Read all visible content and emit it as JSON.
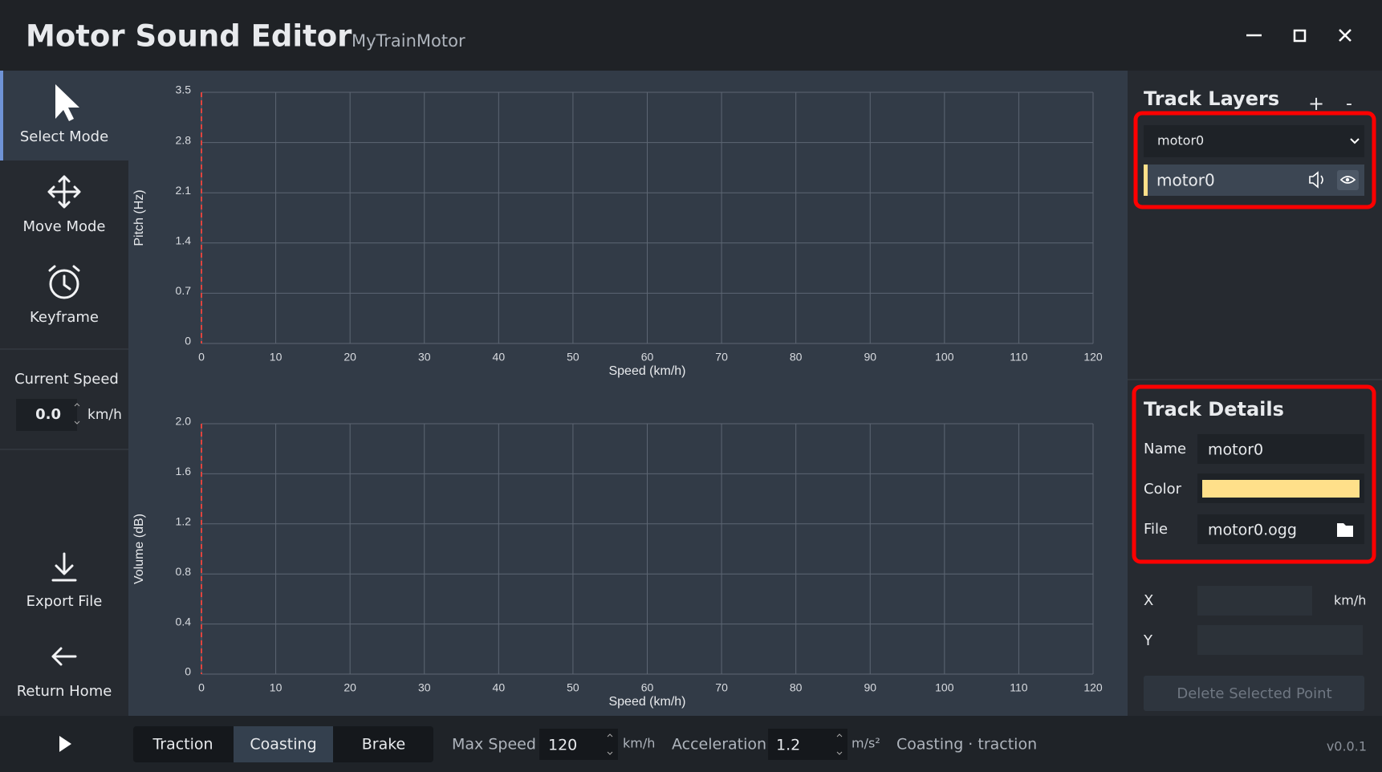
{
  "window": {
    "title": "Motor Sound Editor",
    "project": "MyTrainMotor",
    "version": "v0.0.1"
  },
  "sidebar": {
    "tools": [
      "Select Mode",
      "Move Mode",
      "Keyframe"
    ],
    "current_speed_label": "Current Speed",
    "current_speed": {
      "value": 0,
      "label": "0.0"
    },
    "speed_unit": "km/h",
    "export": "Export File",
    "return": "Return Home"
  },
  "chart_data": [
    {
      "type": "line",
      "x_label": "Speed (km/h)",
      "y_label": "Pitch (Hz)",
      "xlim": [
        0,
        120
      ],
      "xticks": [
        0,
        10,
        20,
        30,
        40,
        50,
        60,
        70,
        80,
        90,
        100,
        110,
        120
      ],
      "ylim": [
        0,
        3.5
      ],
      "yticks": [
        0,
        0.7,
        1.4,
        2.1,
        2.8,
        3.5
      ],
      "grid": true
    },
    {
      "type": "line",
      "x_label": "Speed (km/h)",
      "y_label": "Volume (dB)",
      "xlim": [
        0,
        120
      ],
      "xticks": [
        0,
        10,
        20,
        30,
        40,
        50,
        60,
        70,
        80,
        90,
        100,
        110,
        120
      ],
      "ylim": [
        0,
        2
      ],
      "yticks": [
        0,
        0.4,
        0.8,
        1.2,
        1.6,
        {
          "value": 2,
          "label": "2.0"
        }
      ],
      "grid": true
    }
  ],
  "track_layers": {
    "title": "Track Layers",
    "add": "+",
    "remove": "-",
    "selected": "motor0",
    "layers": [
      "motor0"
    ]
  },
  "track_details": {
    "title": "Track Details",
    "name_label": "Name",
    "name": "motor0",
    "color_label": "Color",
    "color": "#ffe08a",
    "file_label": "File",
    "file": "motor0.ogg"
  },
  "point": {
    "x_label": "X",
    "x_unit": "km/h",
    "y_label": "Y",
    "delete": "Delete Selected Point"
  },
  "bottom_bar": {
    "modes": [
      "Traction",
      "Coasting",
      "Brake"
    ],
    "max_speed_label": "Max Speed",
    "max_speed": "120",
    "speed_unit": "km/h",
    "acceleration_label": "Acceleration",
    "acceleration": "1.2",
    "acceleration_unit": "m/s²",
    "status": "Coasting · traction"
  }
}
